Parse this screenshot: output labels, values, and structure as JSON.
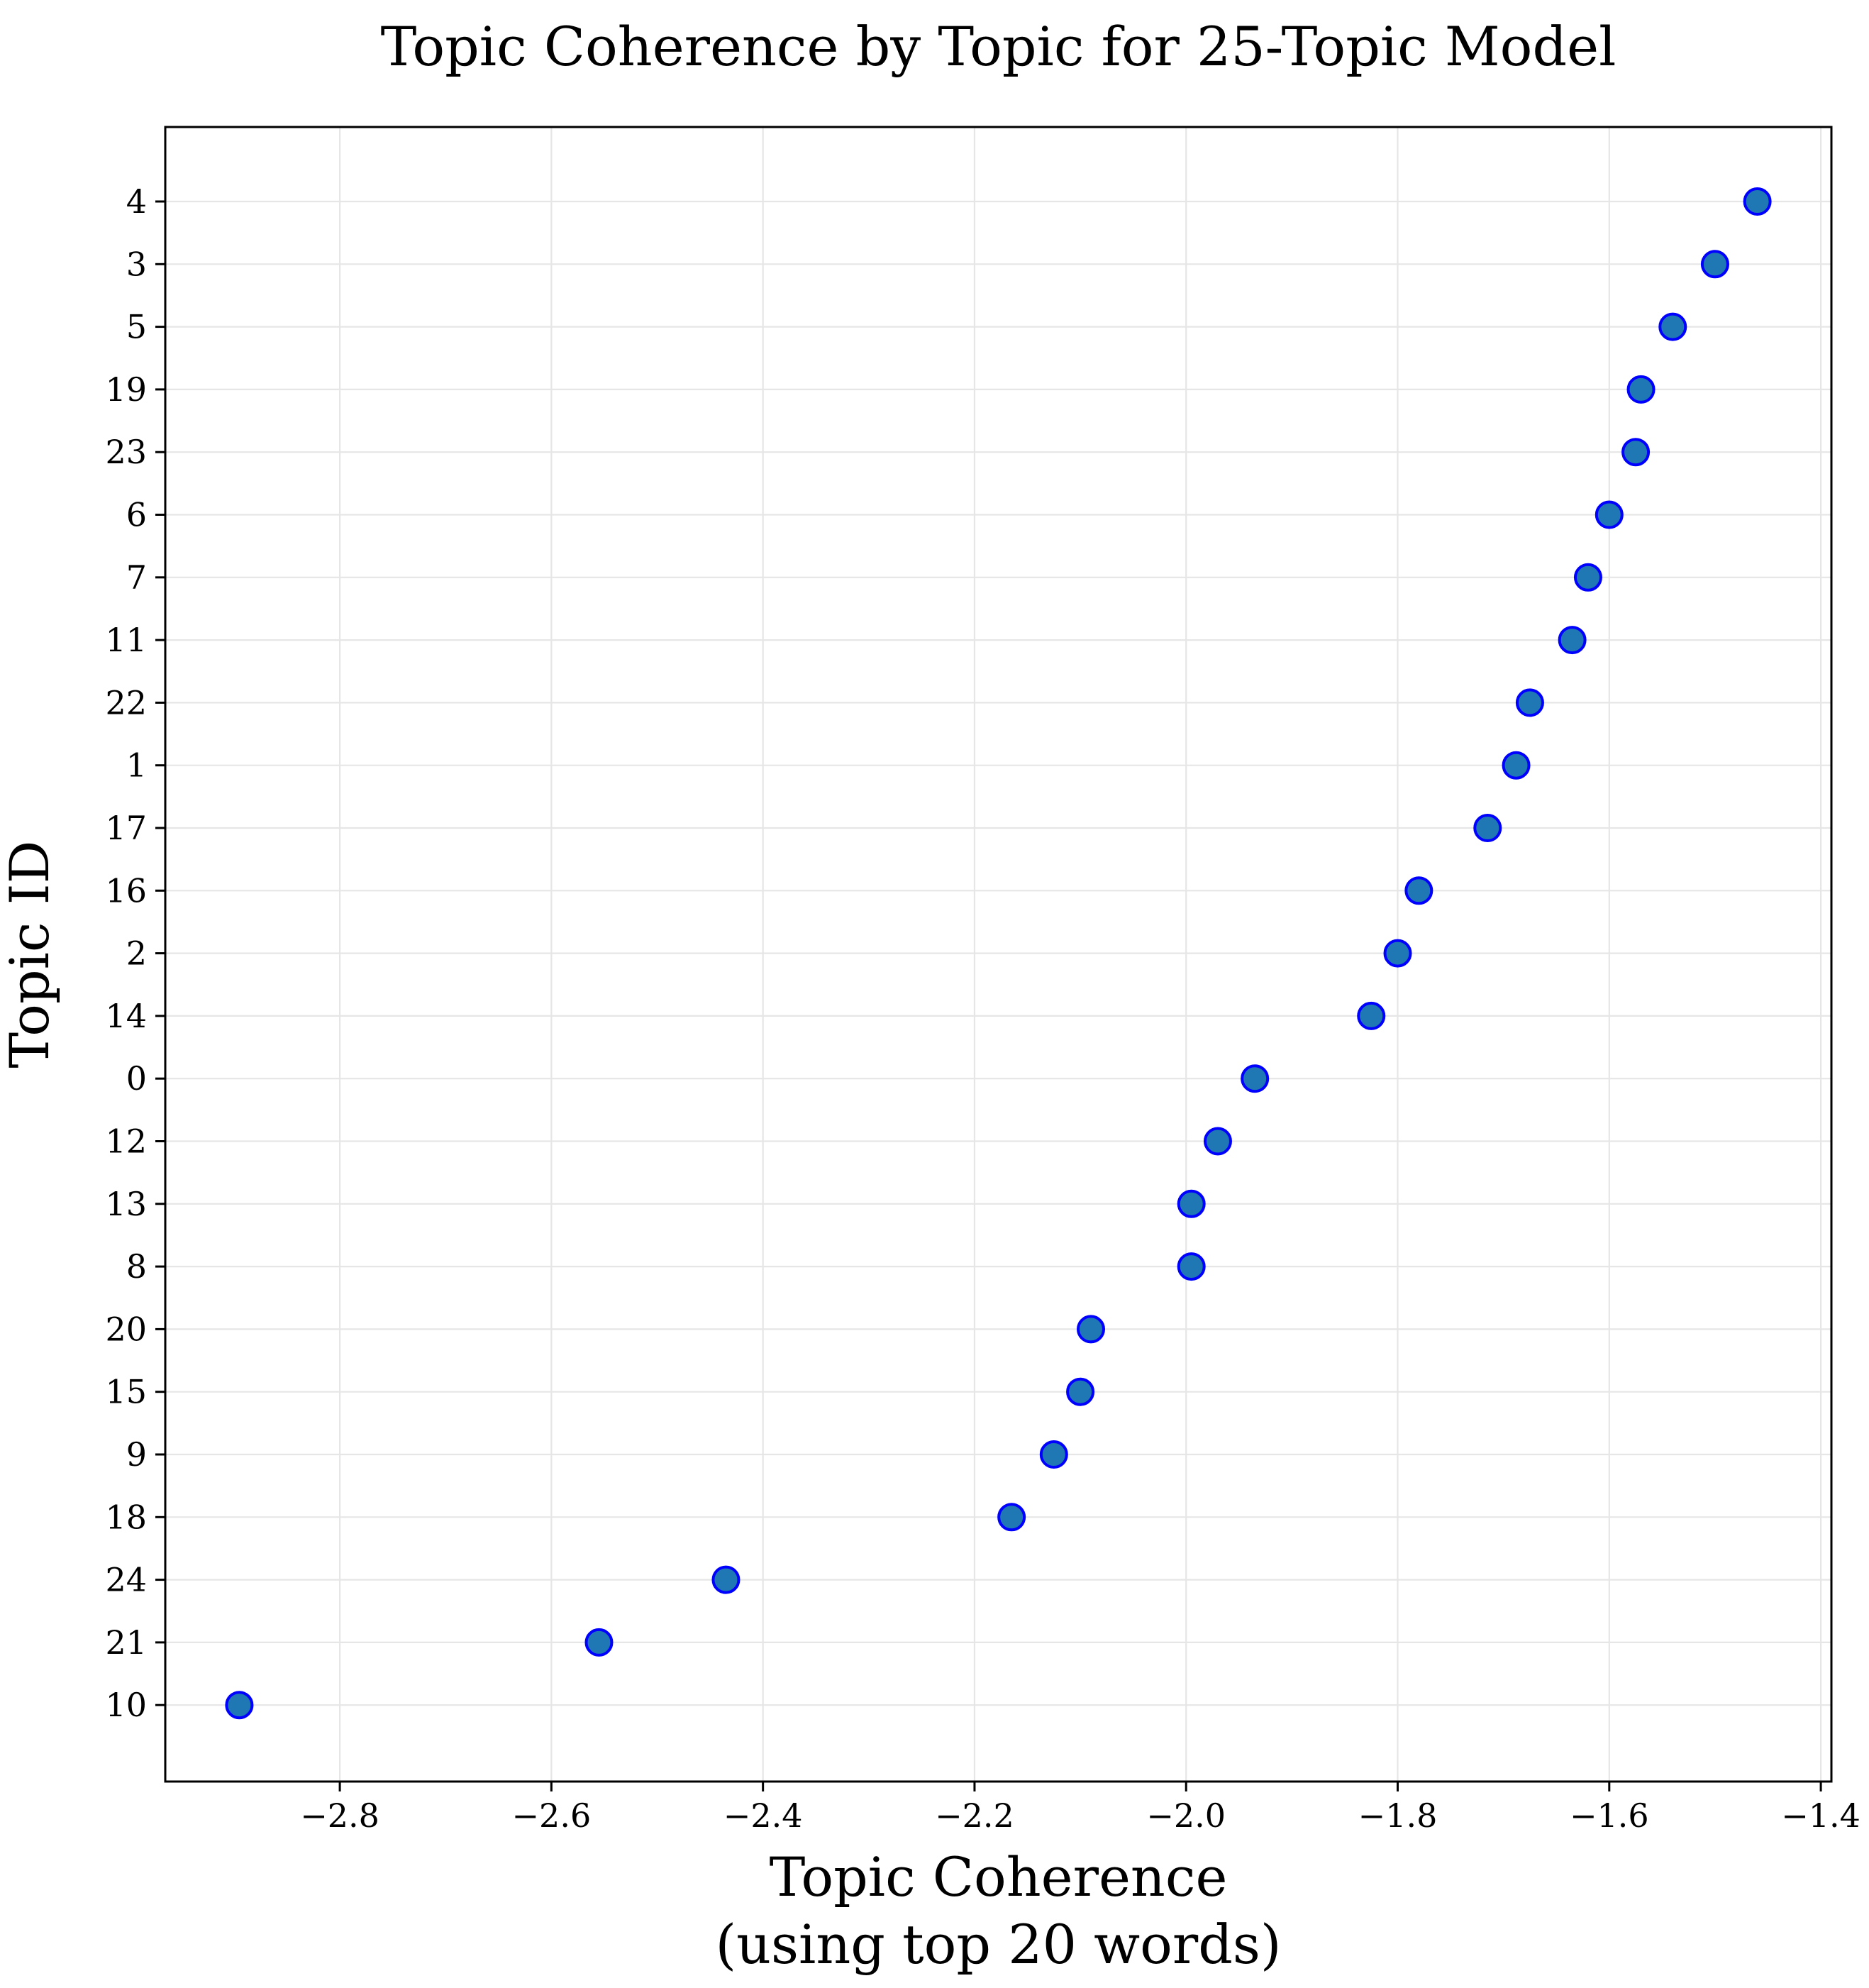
{
  "chart_data": {
    "type": "scatter",
    "title": "Topic Coherence by Topic for 25-Topic Model",
    "xlabel_lines": [
      "Topic Coherence",
      "(using top 20 words)"
    ],
    "ylabel": "Topic ID",
    "xlim": [
      -2.965,
      -1.39
    ],
    "xticks": [
      -2.8,
      -2.6,
      -2.4,
      -2.2,
      -2.0,
      -1.8,
      -1.6,
      -1.4
    ],
    "xtick_labels": [
      "−2.8",
      "−2.6",
      "−2.4",
      "−2.2",
      "−2.0",
      "−1.8",
      "−1.6",
      "−1.4"
    ],
    "grid": true,
    "marker_fill": "#1f77b4",
    "marker_edge": "#0000ff",
    "points": [
      {
        "topic": "4",
        "x": -1.46
      },
      {
        "topic": "3",
        "x": -1.5
      },
      {
        "topic": "5",
        "x": -1.54
      },
      {
        "topic": "19",
        "x": -1.57
      },
      {
        "topic": "23",
        "x": -1.575
      },
      {
        "topic": "6",
        "x": -1.6
      },
      {
        "topic": "7",
        "x": -1.62
      },
      {
        "topic": "11",
        "x": -1.635
      },
      {
        "topic": "22",
        "x": -1.675
      },
      {
        "topic": "1",
        "x": -1.688
      },
      {
        "topic": "17",
        "x": -1.715
      },
      {
        "topic": "16",
        "x": -1.78
      },
      {
        "topic": "2",
        "x": -1.8
      },
      {
        "topic": "14",
        "x": -1.825
      },
      {
        "topic": "0",
        "x": -1.935
      },
      {
        "topic": "12",
        "x": -1.97
      },
      {
        "topic": "13",
        "x": -1.995
      },
      {
        "topic": "8",
        "x": -1.995
      },
      {
        "topic": "20",
        "x": -2.09
      },
      {
        "topic": "15",
        "x": -2.1
      },
      {
        "topic": "9",
        "x": -2.125
      },
      {
        "topic": "18",
        "x": -2.165
      },
      {
        "topic": "24",
        "x": -2.435
      },
      {
        "topic": "21",
        "x": -2.555
      },
      {
        "topic": "10",
        "x": -2.895
      }
    ]
  }
}
